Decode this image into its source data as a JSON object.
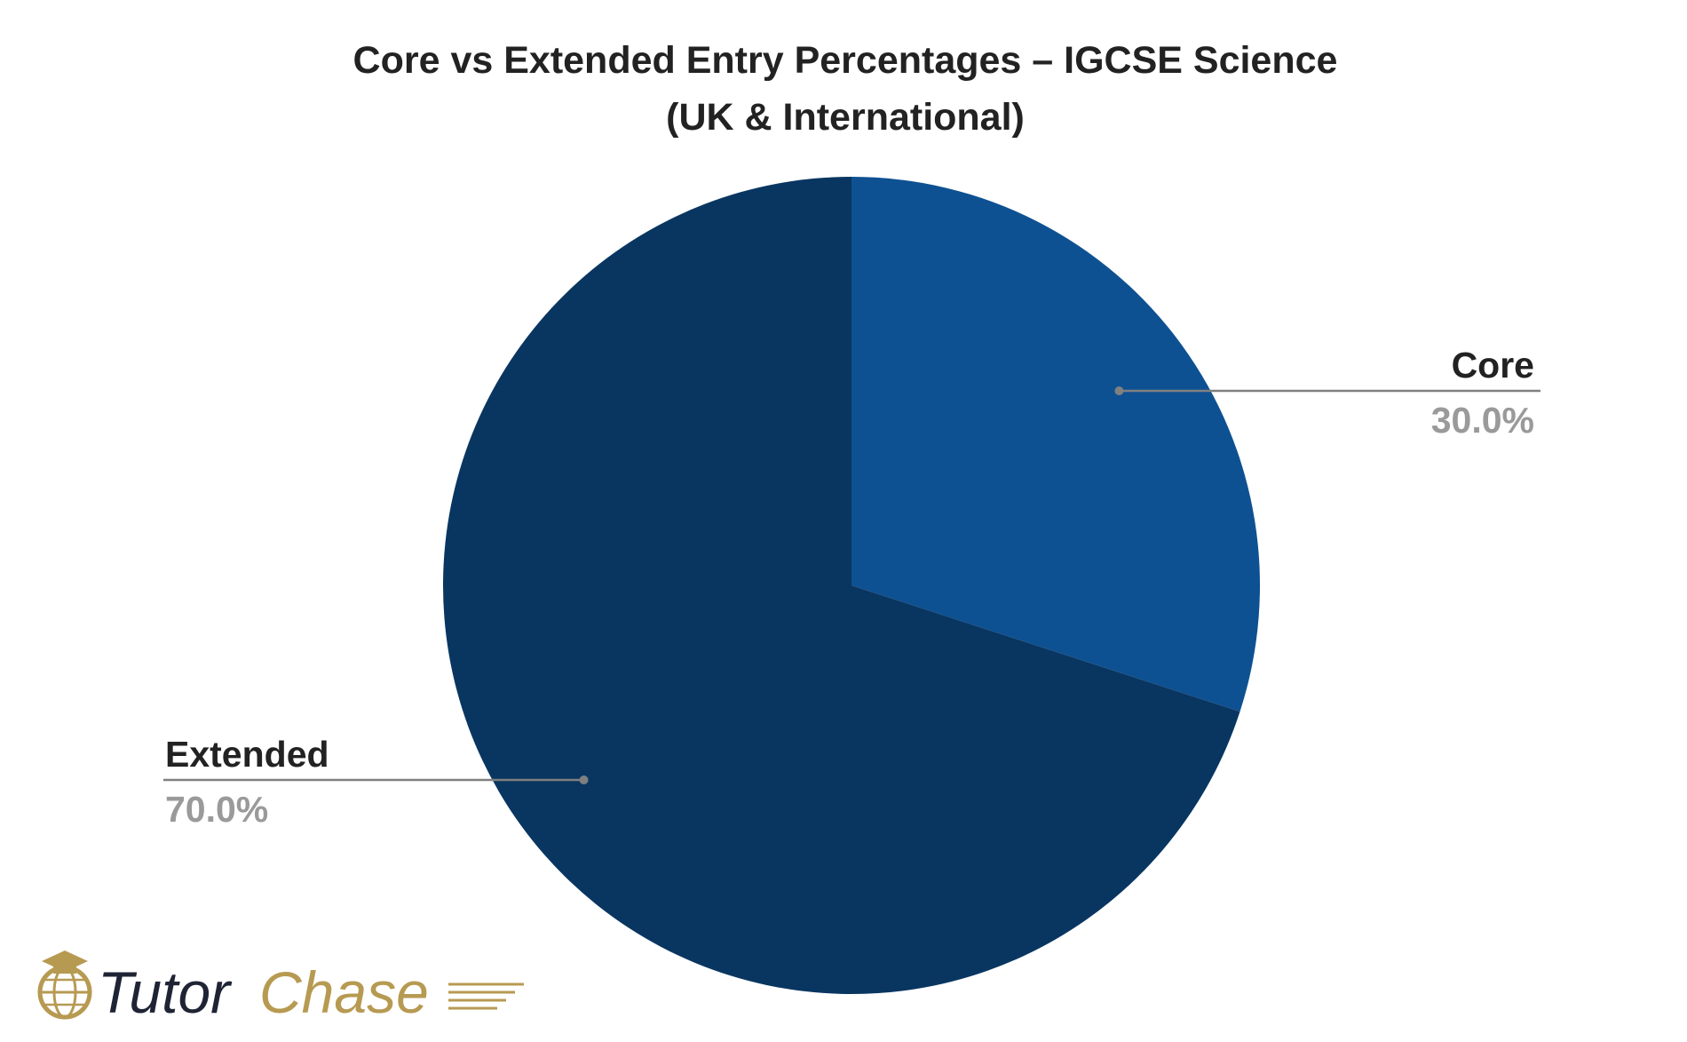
{
  "chart_data": {
    "type": "pie",
    "title": "Core vs Extended Entry Percentages – IGCSE Science",
    "subtitle": "(UK & International)",
    "slices": [
      {
        "label": "Core",
        "value": 30.0,
        "display": "30.0%",
        "color": "#0e5192"
      },
      {
        "label": "Extended",
        "value": 70.0,
        "display": "70.0%",
        "color": "#093661"
      }
    ],
    "start_angle": "12 o'clock",
    "direction": "clockwise",
    "legend": "none"
  },
  "brand": {
    "name_part1": "Tutor",
    "name_part2": "Chase",
    "color_dark": "#1f2435",
    "color_gold": "#b79a52"
  }
}
